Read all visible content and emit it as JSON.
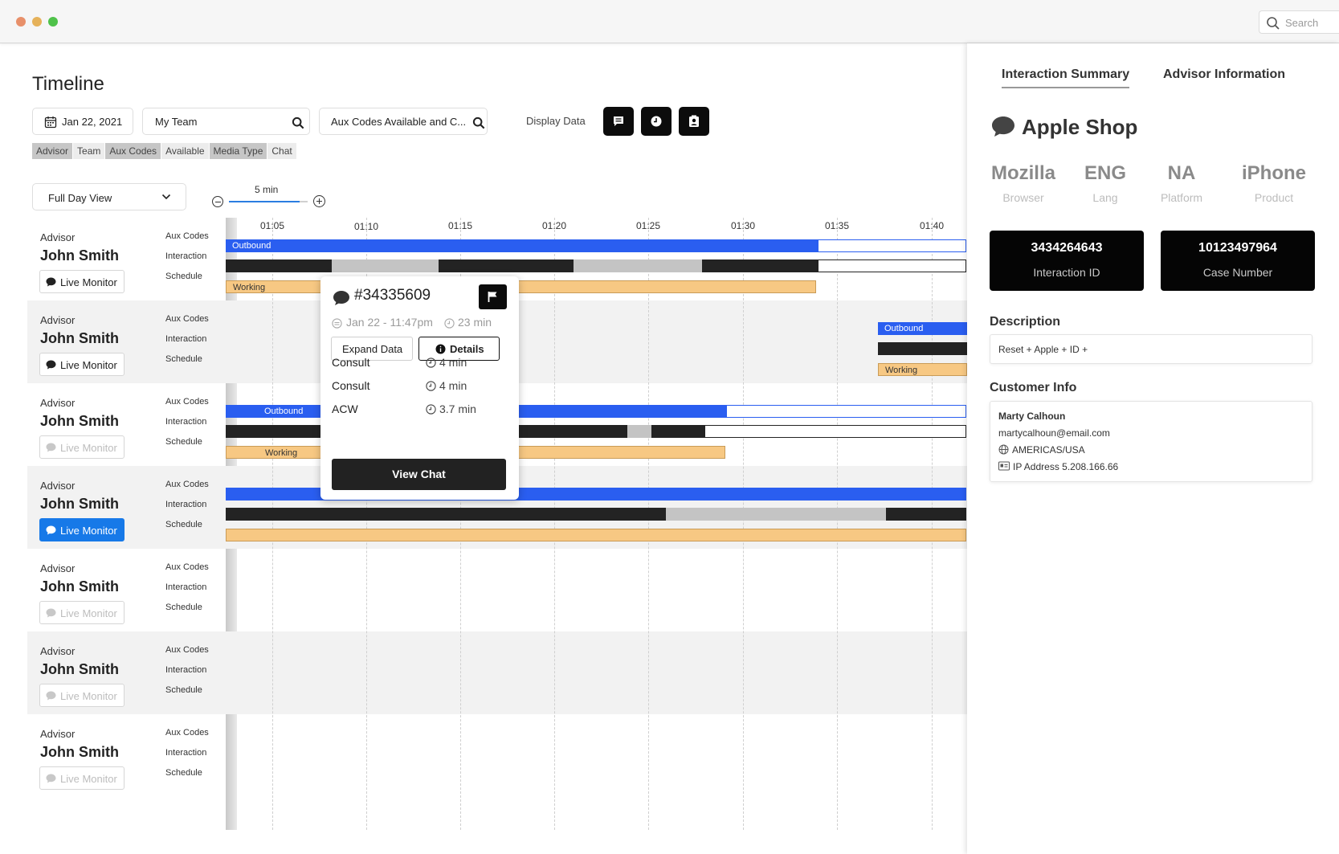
{
  "window": {
    "search_placeholder": "Search"
  },
  "header": {
    "title": "Timeline",
    "date": "Jan 22, 2021",
    "team": "My Team",
    "aux_filter": "Aux Codes Available and C...",
    "display_data_label": "Display Data",
    "chips": [
      "Advisor",
      "Team",
      "Aux Codes",
      "Available",
      "Media Type",
      "Chat"
    ],
    "view_select": "Full Day View",
    "zoom_label": "5 min"
  },
  "timeline": {
    "ticks": [
      "01:05",
      "01:10",
      "01:15",
      "01:20",
      "01:25",
      "01:30",
      "01:35",
      "01:40"
    ],
    "row_labels": {
      "aux": "Aux Codes",
      "interaction": "Interaction",
      "schedule": "Schedule"
    },
    "bar_labels": {
      "outbound": "Outbound",
      "working": "Working"
    },
    "advisors": [
      {
        "role": "Advisor",
        "name": "John Smith",
        "live_monitor": "Live Monitor",
        "state": "normal"
      },
      {
        "role": "Advisor",
        "name": "John Smith",
        "live_monitor": "Live Monitor",
        "state": "normal"
      },
      {
        "role": "Advisor",
        "name": "John Smith",
        "live_monitor": "Live Monitor",
        "state": "disabled"
      },
      {
        "role": "Advisor",
        "name": "John Smith",
        "live_monitor": "Live Monitor",
        "state": "active"
      },
      {
        "role": "Advisor",
        "name": "John Smith",
        "live_monitor": "Live Monitor",
        "state": "disabled"
      },
      {
        "role": "Advisor",
        "name": "John Smith",
        "live_monitor": "Live Monitor",
        "state": "disabled"
      },
      {
        "role": "Advisor",
        "name": "John Smith",
        "live_monitor": "Live Monitor",
        "state": "disabled"
      }
    ]
  },
  "popover": {
    "title": "#34335609",
    "date": "Jan 22 - 11:47pm",
    "duration": "23 min",
    "expand_label": "Expand Data",
    "details_label": "Details",
    "rows": [
      {
        "label": "Consult",
        "duration": "4 min"
      },
      {
        "label": "Consult",
        "duration": "4 min"
      },
      {
        "label": "ACW",
        "duration": "3.7 min"
      }
    ],
    "view_chat": "View Chat"
  },
  "panel": {
    "tabs": [
      "Interaction Summary",
      "Advisor Information"
    ],
    "shop": "Apple Shop",
    "stats": [
      {
        "value": "Mozilla",
        "key": "Browser"
      },
      {
        "value": "ENG",
        "key": "Lang"
      },
      {
        "value": "NA",
        "key": "Platform"
      },
      {
        "value": "iPhone",
        "key": "Product"
      }
    ],
    "interaction_id": {
      "value": "3434264643",
      "key": "Interaction ID"
    },
    "case_number": {
      "value": "10123497964",
      "key": "Case Number"
    },
    "description_title": "Description",
    "description": "Reset + Apple + ID +",
    "customer_title": "Customer Info",
    "customer": {
      "name": "Marty Calhoun",
      "email": "martycalhoun@email.com",
      "region": "AMERICAS/USA",
      "ip": "IP Address 5.208.166.66"
    }
  },
  "colors": {
    "outbound": "#2a5ef0",
    "interaction": "#232323",
    "hold": "#c4c4c4",
    "working": "#f7c883",
    "live_monitor_active": "#1779e8"
  }
}
